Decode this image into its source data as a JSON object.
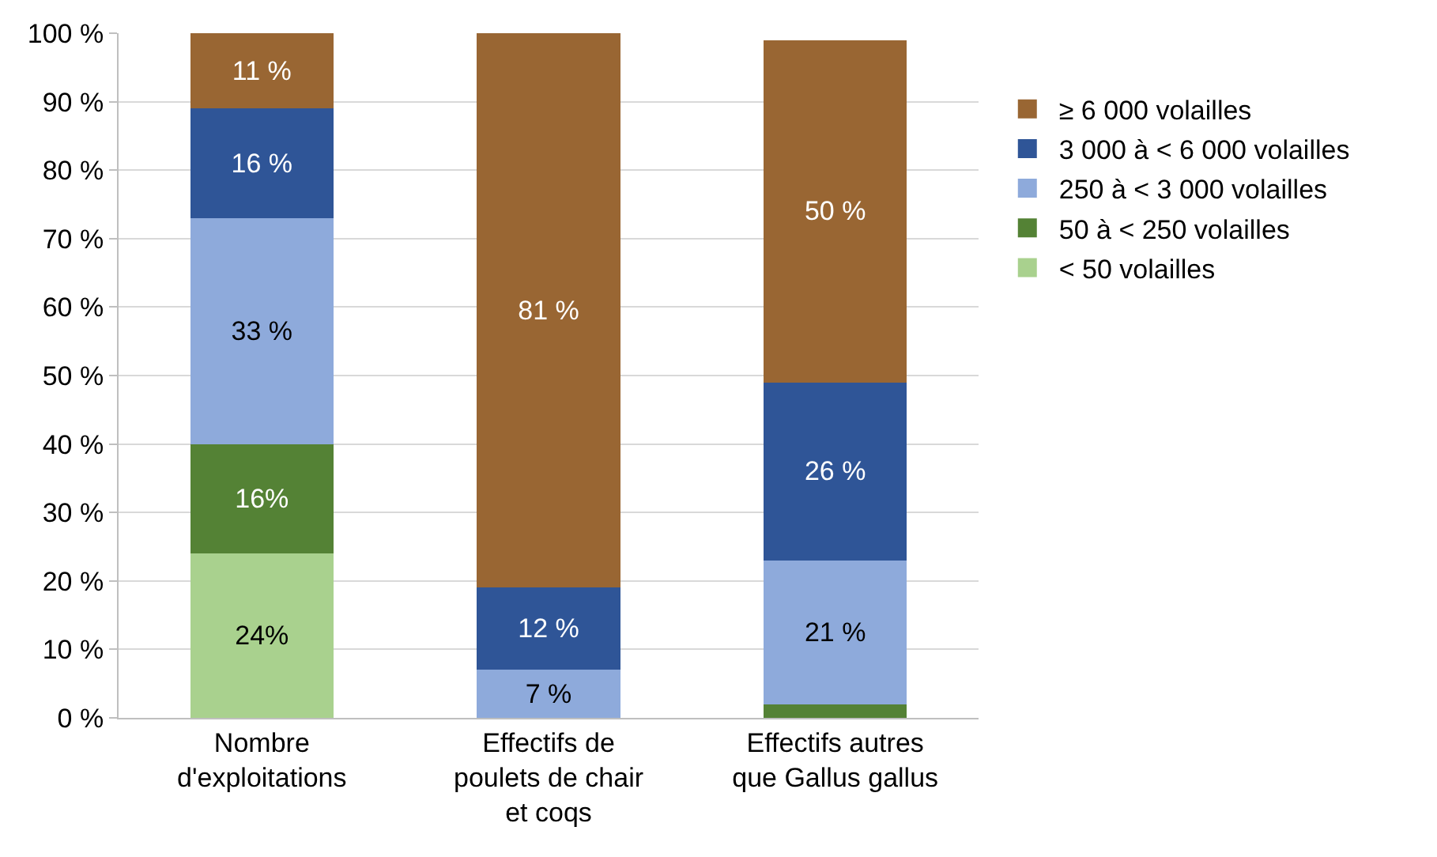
{
  "chart_data": {
    "type": "bar",
    "stacked": true,
    "categories": [
      "Nombre d'exploitations",
      "Effectifs de poulets de chair et coqs",
      "Effectifs autres que Gallus gallus"
    ],
    "series": [
      {
        "name": "< 50 volailles",
        "color": "#a9d18e",
        "values": [
          24,
          0,
          0
        ],
        "value_labels": [
          "24%",
          null,
          null
        ]
      },
      {
        "name": "50 à < 250 volailles",
        "color": "#548235",
        "values": [
          16,
          0,
          2
        ],
        "value_labels": [
          "16%",
          null,
          null
        ]
      },
      {
        "name": "250 à < 3 000 volailles",
        "color": "#8eaadb",
        "values": [
          33,
          7,
          21
        ],
        "value_labels": [
          "33 %",
          "7 %",
          "21 %"
        ]
      },
      {
        "name": "3 000 à < 6 000 volailles",
        "color": "#2f5597",
        "values": [
          16,
          12,
          26
        ],
        "value_labels": [
          "16 %",
          "12 %",
          "26 %"
        ]
      },
      {
        "name": "≥ 6 000 volailles",
        "color": "#996633",
        "values": [
          11,
          81,
          50
        ],
        "value_labels": [
          "11 %",
          "81 %",
          "50 %"
        ]
      }
    ],
    "ylim": [
      0,
      100
    ],
    "yticks": [
      {
        "value": 0,
        "label": "0 %"
      },
      {
        "value": 10,
        "label": "10 %"
      },
      {
        "value": 20,
        "label": "20 %"
      },
      {
        "value": 30,
        "label": "30 %"
      },
      {
        "value": 40,
        "label": "40 %"
      },
      {
        "value": 50,
        "label": "50 %"
      },
      {
        "value": 60,
        "label": "60 %"
      },
      {
        "value": 70,
        "label": "70 %"
      },
      {
        "value": 80,
        "label": "80 %"
      },
      {
        "value": 90,
        "label": "90 %"
      },
      {
        "value": 100,
        "label": "100 %"
      }
    ],
    "grid": "y",
    "legend": "right"
  }
}
